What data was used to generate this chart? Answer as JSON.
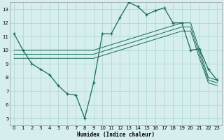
{
  "xlabel": "Humidex (Indice chaleur)",
  "bg_color": "#d6eeee",
  "line_color": "#1a6b5a",
  "grid_color": "#b0d8d8",
  "xlim": [
    -0.5,
    23.5
  ],
  "ylim": [
    4.5,
    13.5
  ],
  "yticks": [
    5,
    6,
    7,
    8,
    9,
    10,
    11,
    12,
    13
  ],
  "xticks": [
    0,
    1,
    2,
    3,
    4,
    5,
    6,
    7,
    8,
    9,
    10,
    11,
    12,
    13,
    14,
    15,
    16,
    17,
    18,
    19,
    20,
    21,
    22,
    23
  ],
  "series1_x": [
    0,
    1,
    2,
    3,
    4,
    5,
    6,
    7,
    8,
    9,
    10,
    11,
    12,
    13,
    14,
    15,
    16,
    17,
    18,
    19,
    20,
    21,
    22,
    23
  ],
  "series1_y": [
    11.2,
    10.0,
    9.0,
    8.6,
    8.2,
    7.4,
    6.8,
    6.7,
    5.0,
    7.6,
    11.2,
    11.2,
    12.4,
    13.5,
    13.2,
    12.6,
    12.9,
    13.1,
    12.0,
    12.0,
    10.0,
    10.1,
    8.6,
    7.8
  ],
  "series2_x": [
    0,
    1,
    2,
    3,
    4,
    5,
    6,
    7,
    8,
    9,
    10,
    11,
    12,
    13,
    14,
    15,
    16,
    17,
    18,
    19,
    20,
    21,
    22,
    23
  ],
  "series2_y": [
    10.0,
    10.0,
    10.0,
    10.0,
    10.0,
    10.0,
    10.0,
    10.0,
    10.0,
    10.0,
    10.2,
    10.4,
    10.6,
    10.8,
    11.0,
    11.2,
    11.4,
    11.6,
    11.8,
    12.0,
    12.0,
    10.0,
    8.0,
    7.8
  ],
  "series3_x": [
    0,
    1,
    2,
    3,
    4,
    5,
    6,
    7,
    8,
    9,
    10,
    11,
    12,
    13,
    14,
    15,
    16,
    17,
    18,
    19,
    20,
    21,
    22,
    23
  ],
  "series3_y": [
    9.7,
    9.7,
    9.7,
    9.7,
    9.7,
    9.7,
    9.7,
    9.7,
    9.7,
    9.7,
    9.9,
    10.1,
    10.3,
    10.5,
    10.7,
    10.9,
    11.1,
    11.3,
    11.5,
    11.7,
    11.7,
    9.7,
    7.8,
    7.6
  ],
  "series4_x": [
    0,
    1,
    2,
    3,
    4,
    5,
    6,
    7,
    8,
    9,
    10,
    11,
    12,
    13,
    14,
    15,
    16,
    17,
    18,
    19,
    20,
    21,
    22,
    23
  ],
  "series4_y": [
    9.4,
    9.4,
    9.4,
    9.4,
    9.4,
    9.4,
    9.4,
    9.4,
    9.4,
    9.4,
    9.6,
    9.8,
    10.0,
    10.2,
    10.4,
    10.6,
    10.8,
    11.0,
    11.2,
    11.4,
    11.4,
    9.4,
    7.6,
    7.4
  ]
}
